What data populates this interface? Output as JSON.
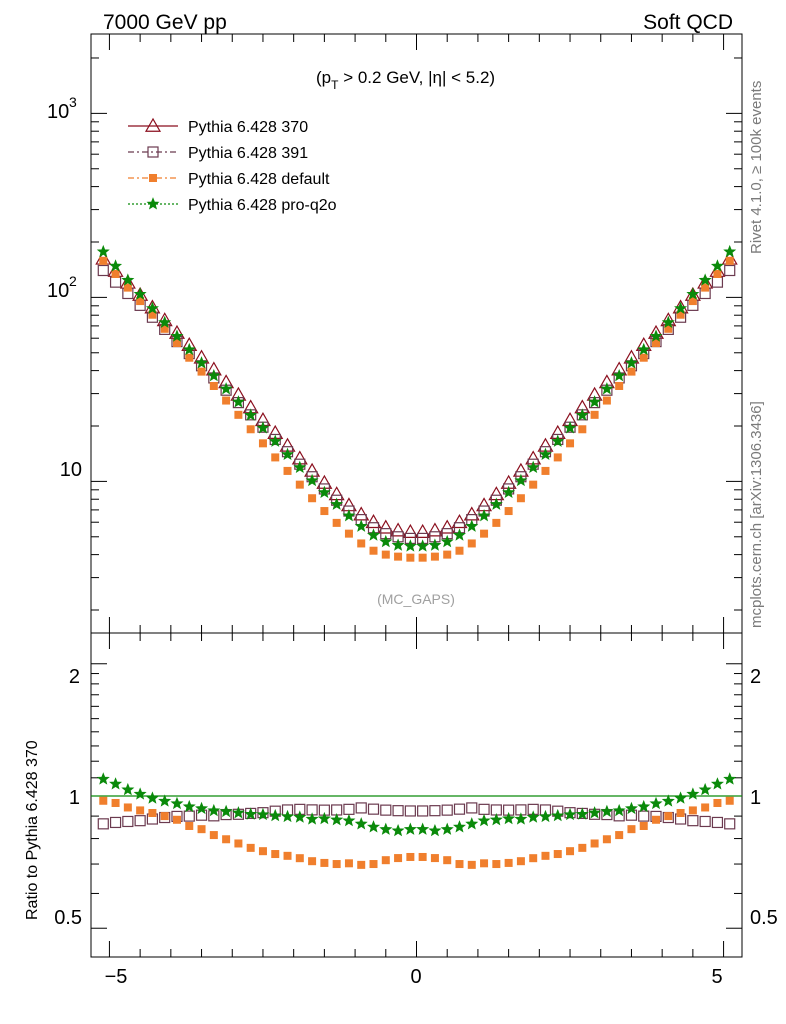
{
  "header": {
    "left": "7000 GeV pp",
    "right": "Soft QCD"
  },
  "side_labels": {
    "rivet": "Rivet 4.1.0, ≥ 100k events",
    "mcplots": "mcplots.cern.ch [arXiv:1306.3436]"
  },
  "chart_data": [
    {
      "type": "scatter",
      "panel": "main",
      "annotation": {
        "prefix": "(p",
        "subscript": "T",
        "suffix": " > 0.2 GeV, |η| < 5.2)"
      },
      "watermark": "(MC_GAPS)",
      "yscale": "log",
      "ylim": [
        1.5,
        2700
      ],
      "xlim": [
        -5.3,
        5.3
      ],
      "ytick_labels": {
        "main_10": "10",
        "p2_base": "10",
        "p2_exp": "2",
        "p3_base": "10",
        "p3_exp": "3"
      },
      "legend_position": "top-left",
      "eta_min": -5.1,
      "eta_step": 0.2,
      "series": [
        {
          "name": "Pythia 6.428 370",
          "color": "#8b0f1e",
          "marker": "triangle-open",
          "values": [
            162,
            139,
            120,
            103,
            88,
            75,
            64,
            55,
            47,
            40.5,
            34.5,
            29.5,
            25.2,
            21.5,
            18.3,
            15.6,
            13.3,
            11.4,
            9.8,
            8.5,
            7.4,
            6.6,
            6.0,
            5.6,
            5.4,
            5.3,
            5.3,
            5.4,
            5.6,
            6.0,
            6.6,
            7.4,
            8.5,
            9.8,
            11.4,
            13.3,
            15.6,
            18.3,
            21.5,
            25.2,
            29.5,
            34.5,
            40.5,
            47,
            55,
            64,
            75,
            88,
            103,
            120,
            139,
            162
          ]
        },
        {
          "name": "Pythia 6.428 391",
          "color": "#6b3a4f",
          "marker": "square-open",
          "values": [
            140,
            121,
            105,
            90.5,
            78,
            67,
            57.5,
            49.5,
            42.5,
            36.5,
            31.3,
            26.8,
            23.0,
            19.7,
            16.9,
            14.5,
            12.4,
            10.6,
            9.1,
            7.9,
            6.9,
            6.2,
            5.6,
            5.2,
            5.0,
            4.9,
            4.9,
            5.0,
            5.2,
            5.6,
            6.2,
            6.9,
            7.9,
            9.1,
            10.6,
            12.4,
            14.5,
            16.9,
            19.7,
            23.0,
            26.8,
            31.3,
            36.5,
            42.5,
            49.5,
            57.5,
            67,
            78,
            90.5,
            105,
            121,
            140
          ]
        },
        {
          "name": "Pythia 6.428 default",
          "color": "#f07f2d",
          "marker": "square-filled",
          "values": [
            158,
            134,
            113,
            95.5,
            80.5,
            67.5,
            56.5,
            47,
            39.5,
            33,
            27.5,
            23.0,
            19.2,
            16.1,
            13.5,
            11.4,
            9.6,
            8.1,
            6.9,
            5.95,
            5.2,
            4.6,
            4.2,
            4.0,
            3.9,
            3.85,
            3.85,
            3.9,
            4.0,
            4.2,
            4.6,
            5.2,
            5.95,
            6.9,
            8.1,
            9.6,
            11.4,
            13.5,
            16.1,
            19.2,
            23.0,
            27.5,
            33,
            39.5,
            47,
            56.5,
            67.5,
            80.5,
            95.5,
            113,
            134,
            158
          ]
        },
        {
          "name": "Pythia 6.428 pro-q2o",
          "color": "#0a8a0a",
          "marker": "star",
          "values": [
            177,
            148,
            124,
            104,
            87,
            73,
            61.5,
            52,
            44,
            37.5,
            31.8,
            27,
            22.9,
            19.5,
            16.5,
            14.0,
            11.9,
            10.1,
            8.7,
            7.5,
            6.5,
            5.7,
            5.1,
            4.7,
            4.5,
            4.45,
            4.45,
            4.5,
            4.7,
            5.1,
            5.7,
            6.5,
            7.5,
            8.7,
            10.1,
            11.9,
            14.0,
            16.5,
            19.5,
            22.9,
            27,
            31.8,
            37.5,
            44,
            52,
            61.5,
            73,
            87,
            104,
            124,
            148,
            177
          ]
        }
      ]
    },
    {
      "type": "scatter",
      "panel": "ratio",
      "ylabel": "Ratio to Pythia 6.428 370",
      "yscale": "log",
      "ylim": [
        0.43,
        2.35
      ],
      "xlim": [
        -5.3,
        5.3
      ],
      "ytick_labels": [
        "0.5",
        "1",
        "2"
      ],
      "xtick_labels": [
        "−5",
        "0",
        "5"
      ],
      "reference": 1.0
    }
  ]
}
